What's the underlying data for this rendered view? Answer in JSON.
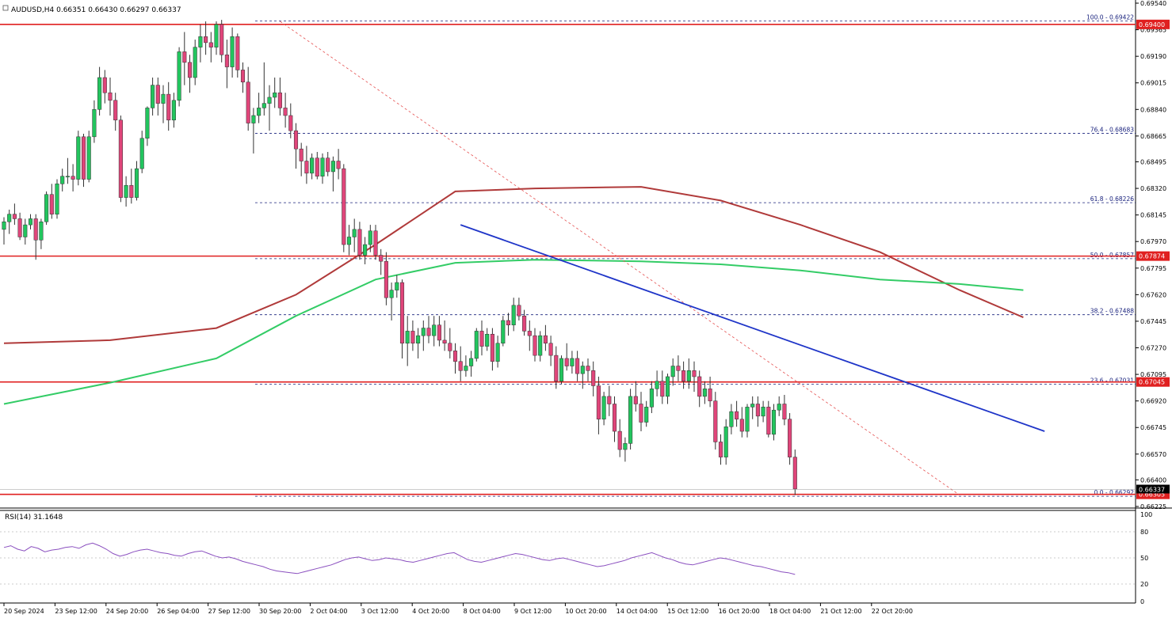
{
  "header": {
    "symbol_info": "AUDUSD,H4  0.66351 0.66430 0.66297 0.66337",
    "rsi_info": "RSI(14) 31.1648"
  },
  "colors": {
    "bull_body": "#22c55e",
    "bear_body": "#e0457a",
    "wick": "#333333",
    "support_line": "#e02020",
    "fib_line": "#1a237e",
    "trendline": "#1f35c8",
    "diag_dashed": "#e55050",
    "ma_red": "#b03a3a",
    "ma_green": "#33cc66",
    "rsi_line": "#8a4fbf",
    "price_tag_bg": "#e02020"
  },
  "chart_data": {
    "type": "candlestick",
    "price_axis": {
      "range": [
        0.66225,
        0.6954
      ],
      "ticks": [
        "0.69540",
        "0.69365",
        "0.69190",
        "0.69015",
        "0.68840",
        "0.68665",
        "0.68495",
        "0.68320",
        "0.68145",
        "0.67970",
        "0.67795",
        "0.67620",
        "0.67445",
        "0.67270",
        "0.67095",
        "0.66920",
        "0.66745",
        "0.66570",
        "0.66400",
        "0.66225"
      ]
    },
    "time_axis": {
      "labels": [
        "20 Sep 2024",
        "23 Sep 12:00",
        "24 Sep 20:00",
        "26 Sep 04:00",
        "27 Sep 12:00",
        "30 Sep 20:00",
        "2 Oct 04:00",
        "3 Oct 12:00",
        "4 Oct 20:00",
        "8 Oct 04:00",
        "9 Oct 12:00",
        "10 Oct 20:00",
        "14 Oct 04:00",
        "15 Oct 12:00",
        "16 Oct 20:00",
        "18 Oct 04:00",
        "21 Oct 12:00",
        "22 Oct 20:00"
      ]
    },
    "horizontal_levels": [
      {
        "label": "0.69400",
        "price": 0.694
      },
      {
        "label": "0.67874",
        "price": 0.67874
      },
      {
        "label": "0.67045",
        "price": 0.67045
      },
      {
        "label": "0.66305",
        "price": 0.66305
      }
    ],
    "current_price_label": "0.66337",
    "fibonacci": [
      {
        "label": "100.0 - 0.69422",
        "price": 0.69422
      },
      {
        "label": "76.4 - 0.68683",
        "price": 0.68683
      },
      {
        "label": "61.8 - 0.68226",
        "price": 0.68226
      },
      {
        "label": "50.0 - 0.67857",
        "price": 0.67857
      },
      {
        "label": "38.2 - 0.67488",
        "price": 0.67488
      },
      {
        "label": "23.6 - 0.67031",
        "price": 0.67031
      },
      {
        "label": "0.0 - 0.66292",
        "price": 0.66292
      }
    ],
    "trendline": {
      "from": {
        "bar": 86,
        "price": 0.6808
      },
      "to": {
        "bar": 196,
        "price": 0.6672
      }
    },
    "diagonal_dashed": {
      "from": {
        "bar": 52,
        "price": 0.6942
      },
      "to": {
        "bar": 180,
        "price": 0.663
      }
    },
    "moving_averages": [
      {
        "kind": "red",
        "points": [
          [
            0,
            0.673
          ],
          [
            20,
            0.6732
          ],
          [
            40,
            0.674
          ],
          [
            55,
            0.6762
          ],
          [
            70,
            0.6795
          ],
          [
            85,
            0.683
          ],
          [
            100,
            0.6832
          ],
          [
            120,
            0.6833
          ],
          [
            135,
            0.6824
          ],
          [
            150,
            0.6808
          ],
          [
            165,
            0.679
          ],
          [
            180,
            0.6765
          ],
          [
            192,
            0.6747
          ]
        ]
      },
      {
        "kind": "green",
        "points": [
          [
            0,
            0.669
          ],
          [
            20,
            0.6704
          ],
          [
            40,
            0.672
          ],
          [
            55,
            0.6748
          ],
          [
            70,
            0.6772
          ],
          [
            85,
            0.6783
          ],
          [
            100,
            0.6785
          ],
          [
            120,
            0.6784
          ],
          [
            135,
            0.6782
          ],
          [
            150,
            0.6778
          ],
          [
            165,
            0.6772
          ],
          [
            180,
            0.6769
          ],
          [
            192,
            0.6765
          ]
        ]
      }
    ],
    "candles": [
      [
        0.6805,
        0.6813,
        0.6795,
        0.681
      ],
      [
        0.681,
        0.6818,
        0.6802,
        0.6815
      ],
      [
        0.6815,
        0.6822,
        0.6808,
        0.6812
      ],
      [
        0.6812,
        0.6816,
        0.6798,
        0.68
      ],
      [
        0.68,
        0.6812,
        0.6795,
        0.6808
      ],
      [
        0.6808,
        0.6815,
        0.6805,
        0.6812
      ],
      [
        0.6812,
        0.6815,
        0.6785,
        0.6798
      ],
      [
        0.6798,
        0.6812,
        0.6792,
        0.681
      ],
      [
        0.681,
        0.683,
        0.6808,
        0.6828
      ],
      [
        0.6828,
        0.6835,
        0.6812,
        0.6815
      ],
      [
        0.6815,
        0.6838,
        0.6812,
        0.6835
      ],
      [
        0.6835,
        0.6845,
        0.683,
        0.684
      ],
      [
        0.684,
        0.6852,
        0.6835,
        0.684
      ],
      [
        0.684,
        0.6848,
        0.683,
        0.6838
      ],
      [
        0.6838,
        0.687,
        0.6834,
        0.6866
      ],
      [
        0.6866,
        0.6868,
        0.6833,
        0.6838
      ],
      [
        0.6838,
        0.687,
        0.6836,
        0.6866
      ],
      [
        0.6866,
        0.689,
        0.6862,
        0.6884
      ],
      [
        0.6884,
        0.6912,
        0.688,
        0.6905
      ],
      [
        0.6905,
        0.691,
        0.6888,
        0.6895
      ],
      [
        0.6895,
        0.6905,
        0.688,
        0.689
      ],
      [
        0.689,
        0.6895,
        0.687,
        0.6877
      ],
      [
        0.6877,
        0.688,
        0.6823,
        0.6826
      ],
      [
        0.6826,
        0.684,
        0.682,
        0.6834
      ],
      [
        0.6834,
        0.6845,
        0.6822,
        0.6826
      ],
      [
        0.6826,
        0.685,
        0.6824,
        0.6845
      ],
      [
        0.6845,
        0.687,
        0.6842,
        0.6865
      ],
      [
        0.6865,
        0.6886,
        0.686,
        0.6885
      ],
      [
        0.6885,
        0.6905,
        0.688,
        0.69
      ],
      [
        0.69,
        0.6905,
        0.688,
        0.6888
      ],
      [
        0.6888,
        0.69,
        0.6875,
        0.6894
      ],
      [
        0.6894,
        0.6902,
        0.687,
        0.6877
      ],
      [
        0.6877,
        0.6895,
        0.6872,
        0.689
      ],
      [
        0.689,
        0.6925,
        0.6886,
        0.6922
      ],
      [
        0.6922,
        0.6935,
        0.69,
        0.6915
      ],
      [
        0.6915,
        0.692,
        0.6895,
        0.6905
      ],
      [
        0.6905,
        0.693,
        0.69,
        0.6925
      ],
      [
        0.6925,
        0.694,
        0.6915,
        0.6932
      ],
      [
        0.6932,
        0.6942,
        0.692,
        0.6928
      ],
      [
        0.6928,
        0.6935,
        0.6915,
        0.6925
      ],
      [
        0.6925,
        0.6942,
        0.692,
        0.694
      ],
      [
        0.694,
        0.6943,
        0.6915,
        0.692
      ],
      [
        0.692,
        0.693,
        0.6898,
        0.6912
      ],
      [
        0.6912,
        0.6938,
        0.6905,
        0.6932
      ],
      [
        0.6932,
        0.6934,
        0.6905,
        0.691
      ],
      [
        0.691,
        0.6915,
        0.6895,
        0.6902
      ],
      [
        0.6902,
        0.6912,
        0.687,
        0.6875
      ],
      [
        0.6875,
        0.6885,
        0.6855,
        0.688
      ],
      [
        0.688,
        0.6895,
        0.6875,
        0.6885
      ],
      [
        0.6885,
        0.6915,
        0.688,
        0.6888
      ],
      [
        0.6888,
        0.69,
        0.687,
        0.6892
      ],
      [
        0.6892,
        0.6905,
        0.6885,
        0.6895
      ],
      [
        0.6895,
        0.6905,
        0.688,
        0.6885
      ],
      [
        0.6885,
        0.6895,
        0.6872,
        0.688
      ],
      [
        0.688,
        0.6888,
        0.6865,
        0.687
      ],
      [
        0.687,
        0.6875,
        0.6845,
        0.6858
      ],
      [
        0.6858,
        0.6862,
        0.684,
        0.685
      ],
      [
        0.685,
        0.686,
        0.6835,
        0.6842
      ],
      [
        0.6842,
        0.6855,
        0.6838,
        0.6852
      ],
      [
        0.6852,
        0.6856,
        0.6838,
        0.684
      ],
      [
        0.684,
        0.6855,
        0.6835,
        0.6852
      ],
      [
        0.6852,
        0.6856,
        0.684,
        0.6843
      ],
      [
        0.6843,
        0.6853,
        0.683,
        0.685
      ],
      [
        0.685,
        0.6858,
        0.6838,
        0.6845
      ],
      [
        0.6845,
        0.6848,
        0.679,
        0.6795
      ],
      [
        0.6795,
        0.6808,
        0.6788,
        0.68
      ],
      [
        0.68,
        0.6812,
        0.679,
        0.6805
      ],
      [
        0.6805,
        0.681,
        0.6785,
        0.6788
      ],
      [
        0.6788,
        0.68,
        0.6782,
        0.6795
      ],
      [
        0.6795,
        0.6808,
        0.679,
        0.6804
      ],
      [
        0.6804,
        0.6808,
        0.6785,
        0.6788
      ],
      [
        0.6788,
        0.6792,
        0.6775,
        0.6784
      ],
      [
        0.6784,
        0.679,
        0.6755,
        0.676
      ],
      [
        0.676,
        0.677,
        0.6745,
        0.6765
      ],
      [
        0.6765,
        0.6775,
        0.676,
        0.677
      ],
      [
        0.677,
        0.6772,
        0.672,
        0.673
      ],
      [
        0.673,
        0.6748,
        0.6715,
        0.6738
      ],
      [
        0.6738,
        0.6745,
        0.6725,
        0.673
      ],
      [
        0.673,
        0.674,
        0.672,
        0.6735
      ],
      [
        0.6735,
        0.6745,
        0.6725,
        0.674
      ],
      [
        0.674,
        0.6748,
        0.673,
        0.6735
      ],
      [
        0.6735,
        0.6748,
        0.6728,
        0.6742
      ],
      [
        0.6742,
        0.6748,
        0.6728,
        0.6732
      ],
      [
        0.6732,
        0.6745,
        0.6725,
        0.673
      ],
      [
        0.673,
        0.674,
        0.672,
        0.6725
      ],
      [
        0.6725,
        0.673,
        0.671,
        0.6718
      ],
      [
        0.6718,
        0.6728,
        0.6705,
        0.6712
      ],
      [
        0.6712,
        0.6722,
        0.6708,
        0.6715
      ],
      [
        0.6715,
        0.6725,
        0.6708,
        0.672
      ],
      [
        0.672,
        0.674,
        0.6718,
        0.6738
      ],
      [
        0.6738,
        0.6745,
        0.6722,
        0.6728
      ],
      [
        0.6728,
        0.674,
        0.6725,
        0.6736
      ],
      [
        0.6736,
        0.674,
        0.6712,
        0.6718
      ],
      [
        0.6718,
        0.6735,
        0.6714,
        0.673
      ],
      [
        0.673,
        0.6748,
        0.6728,
        0.6745
      ],
      [
        0.6745,
        0.675,
        0.6735,
        0.6742
      ],
      [
        0.6742,
        0.676,
        0.6738,
        0.6755
      ],
      [
        0.6755,
        0.676,
        0.6745,
        0.6748
      ],
      [
        0.6748,
        0.6752,
        0.6735,
        0.6738
      ],
      [
        0.6738,
        0.6745,
        0.6725,
        0.6735
      ],
      [
        0.6735,
        0.674,
        0.6718,
        0.6722
      ],
      [
        0.6722,
        0.6738,
        0.6718,
        0.6735
      ],
      [
        0.6735,
        0.6742,
        0.6725,
        0.673
      ],
      [
        0.673,
        0.6735,
        0.6715,
        0.6722
      ],
      [
        0.6722,
        0.6728,
        0.67,
        0.6705
      ],
      [
        0.6705,
        0.6722,
        0.6703,
        0.672
      ],
      [
        0.672,
        0.673,
        0.6712,
        0.6715
      ],
      [
        0.6715,
        0.6725,
        0.671,
        0.672
      ],
      [
        0.672,
        0.6725,
        0.6705,
        0.671
      ],
      [
        0.671,
        0.6718,
        0.67,
        0.6715
      ],
      [
        0.6715,
        0.672,
        0.6705,
        0.6712
      ],
      [
        0.6712,
        0.6718,
        0.6695,
        0.6702
      ],
      [
        0.6702,
        0.6708,
        0.667,
        0.668
      ],
      [
        0.668,
        0.6698,
        0.6676,
        0.6695
      ],
      [
        0.6695,
        0.6702,
        0.6682,
        0.669
      ],
      [
        0.669,
        0.6695,
        0.6665,
        0.6672
      ],
      [
        0.6672,
        0.668,
        0.6655,
        0.666
      ],
      [
        0.666,
        0.6668,
        0.6652,
        0.6664
      ],
      [
        0.6664,
        0.67,
        0.666,
        0.6695
      ],
      [
        0.6695,
        0.6705,
        0.6685,
        0.669
      ],
      [
        0.669,
        0.6698,
        0.6672,
        0.6678
      ],
      [
        0.6678,
        0.6692,
        0.6675,
        0.6688
      ],
      [
        0.6688,
        0.6705,
        0.6684,
        0.67
      ],
      [
        0.67,
        0.6712,
        0.6695,
        0.6705
      ],
      [
        0.6705,
        0.6712,
        0.669,
        0.6695
      ],
      [
        0.6695,
        0.671,
        0.669,
        0.6708
      ],
      [
        0.6708,
        0.672,
        0.6702,
        0.6715
      ],
      [
        0.6715,
        0.6722,
        0.6705,
        0.6712
      ],
      [
        0.6712,
        0.6718,
        0.67,
        0.6705
      ],
      [
        0.6705,
        0.672,
        0.67,
        0.6712
      ],
      [
        0.6712,
        0.6718,
        0.6698,
        0.6708
      ],
      [
        0.6708,
        0.6712,
        0.6688,
        0.6695
      ],
      [
        0.6695,
        0.6705,
        0.669,
        0.67
      ],
      [
        0.67,
        0.6708,
        0.6688,
        0.6692
      ],
      [
        0.6692,
        0.6698,
        0.666,
        0.6665
      ],
      [
        0.6665,
        0.667,
        0.665,
        0.6655
      ],
      [
        0.6655,
        0.668,
        0.665,
        0.6675
      ],
      [
        0.6675,
        0.669,
        0.667,
        0.6685
      ],
      [
        0.6685,
        0.6692,
        0.6675,
        0.668
      ],
      [
        0.668,
        0.6688,
        0.6668,
        0.6672
      ],
      [
        0.6672,
        0.669,
        0.6668,
        0.6688
      ],
      [
        0.6688,
        0.6695,
        0.668,
        0.669
      ],
      [
        0.669,
        0.6695,
        0.6675,
        0.6682
      ],
      [
        0.6682,
        0.6692,
        0.6678,
        0.6688
      ],
      [
        0.6688,
        0.6692,
        0.6668,
        0.667
      ],
      [
        0.667,
        0.669,
        0.6666,
        0.6686
      ],
      [
        0.6686,
        0.6695,
        0.6682,
        0.669
      ],
      [
        0.669,
        0.6696,
        0.6676,
        0.668
      ],
      [
        0.668,
        0.6684,
        0.665,
        0.6655
      ],
      [
        0.6655,
        0.666,
        0.663,
        0.6634
      ]
    ],
    "rsi": {
      "label": "RSI(14) 31.1648",
      "levels": [
        "100",
        "80",
        "50",
        "20",
        "0"
      ],
      "values": [
        62,
        64,
        60,
        58,
        63,
        61,
        57,
        59,
        60,
        62,
        63,
        61,
        65,
        67,
        64,
        60,
        55,
        52,
        54,
        57,
        59,
        60,
        58,
        56,
        55,
        53,
        52,
        55,
        57,
        58,
        55,
        52,
        50,
        51,
        49,
        46,
        44,
        42,
        40,
        37,
        35,
        34,
        33,
        32,
        34,
        36,
        38,
        40,
        42,
        45,
        48,
        50,
        51,
        49,
        47,
        48,
        50,
        49,
        48,
        46,
        45,
        47,
        49,
        51,
        53,
        55,
        56,
        52,
        48,
        46,
        45,
        47,
        49,
        51,
        53,
        55,
        54,
        52,
        50,
        48,
        47,
        49,
        50,
        48,
        46,
        44,
        42,
        40,
        41,
        43,
        45,
        47,
        50,
        52,
        54,
        56,
        53,
        50,
        48,
        45,
        43,
        42,
        44,
        46,
        48,
        50,
        49,
        47,
        45,
        43,
        41,
        40,
        38,
        36,
        34,
        33,
        31
      ]
    }
  }
}
